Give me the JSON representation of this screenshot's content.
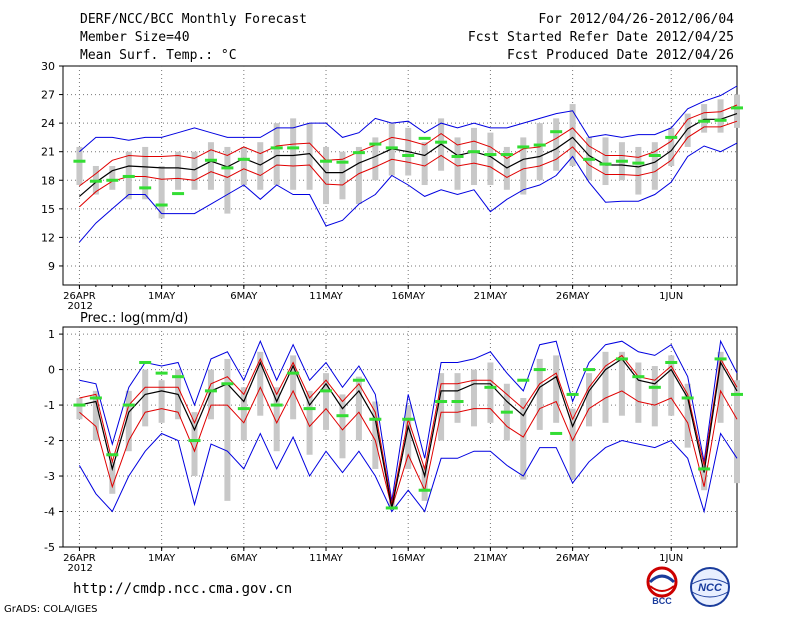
{
  "header": {
    "title": "DERF/NCC/BCC Monthly Forecast",
    "member_size": "Member Size=40",
    "variable": "Mean Surf. Temp.: °C",
    "period": "For 2012/04/26-2012/06/04",
    "started": "Fcst Started Refer Date 2012/04/25",
    "produced": "Fcst Produced Date 2012/04/26"
  },
  "footer": {
    "url": "http://cmdp.ncc.cma.gov.cn",
    "grads": "GrADS: COLA/IGES",
    "logo_left": "BCC",
    "logo_right": "NCC"
  },
  "colors": {
    "spread": "#c8c8c8",
    "mean": "#000000",
    "inner": "#e00000",
    "outer": "#0000e0",
    "obs": "#33dd33"
  },
  "chart_data": [
    {
      "type": "line",
      "title": "Mean Surf. Temp.: °C",
      "x_ticks": [
        {
          "day": 0,
          "label": "26APR",
          "sub": "2012"
        },
        {
          "day": 5,
          "label": "1MAY"
        },
        {
          "day": 10,
          "label": "6MAY"
        },
        {
          "day": 15,
          "label": "11MAY"
        },
        {
          "day": 20,
          "label": "16MAY"
        },
        {
          "day": 25,
          "label": "21MAY"
        },
        {
          "day": 30,
          "label": "26MAY"
        },
        {
          "day": 36,
          "label": "1JUN"
        }
      ],
      "y_ticks": [
        9,
        12,
        15,
        18,
        21,
        24,
        27,
        30
      ],
      "ylim": [
        7,
        30
      ],
      "xlim": [
        -1,
        40
      ],
      "series": {
        "mean": [
          16.3,
          17.8,
          19.0,
          19.5,
          19.4,
          19.3,
          19.3,
          19.1,
          20.0,
          19.4,
          20.3,
          19.6,
          20.6,
          20.6,
          20.8,
          18.8,
          18.8,
          19.8,
          20.5,
          21.3,
          21.0,
          20.6,
          21.8,
          20.6,
          21.0,
          20.5,
          19.3,
          20.2,
          20.5,
          21.3,
          22.5,
          20.6,
          19.6,
          19.6,
          19.4,
          19.9,
          21.1,
          23.4,
          24.4,
          24.4,
          25.0
        ],
        "upper_red": [
          17.4,
          18.7,
          20.1,
          20.6,
          20.5,
          20.5,
          20.6,
          20.3,
          21.2,
          20.6,
          21.5,
          20.8,
          21.6,
          21.8,
          21.9,
          20.1,
          20.2,
          21.0,
          21.7,
          22.5,
          22.2,
          21.7,
          22.9,
          21.7,
          22.1,
          21.5,
          20.3,
          21.3,
          21.5,
          22.4,
          23.5,
          21.6,
          20.6,
          20.6,
          20.4,
          21.0,
          22.1,
          24.4,
          25.1,
          25.2,
          25.9
        ],
        "lower_red": [
          15.2,
          16.8,
          17.9,
          18.4,
          18.4,
          18.1,
          18.2,
          18.0,
          18.9,
          18.3,
          19.2,
          18.5,
          19.6,
          19.5,
          19.6,
          17.6,
          17.5,
          18.7,
          19.4,
          20.2,
          19.9,
          19.5,
          20.6,
          19.5,
          19.8,
          19.4,
          18.3,
          19.2,
          19.5,
          20.2,
          21.5,
          19.6,
          18.6,
          18.6,
          18.5,
          18.9,
          20.1,
          22.5,
          23.6,
          23.6,
          24.2
        ],
        "upper_blue": [
          21.0,
          22.5,
          22.5,
          22.2,
          22.5,
          22.5,
          23.0,
          23.5,
          23.0,
          22.5,
          22.5,
          22.5,
          23.5,
          23.5,
          24.0,
          24.0,
          22.5,
          23.0,
          24.5,
          24.0,
          24.2,
          23.0,
          24.0,
          23.5,
          24.0,
          23.5,
          23.5,
          24.0,
          24.5,
          25.0,
          25.3,
          22.5,
          22.8,
          22.5,
          22.8,
          22.8,
          23.5,
          25.5,
          26.3,
          26.9,
          27.9
        ],
        "lower_blue": [
          11.5,
          13.5,
          15.0,
          16.5,
          16.5,
          14.5,
          14.5,
          14.5,
          15.5,
          16.5,
          17.5,
          16.0,
          17.5,
          16.5,
          16.5,
          13.2,
          13.8,
          15.5,
          16.5,
          18.5,
          17.5,
          16.3,
          17.0,
          16.5,
          17.0,
          14.7,
          16.0,
          17.0,
          17.5,
          18.5,
          20.5,
          17.8,
          15.7,
          15.8,
          15.8,
          16.5,
          17.8,
          20.5,
          21.6,
          21.0,
          21.9
        ],
        "box_top": [
          21.5,
          19.5,
          19.5,
          21.0,
          21.5,
          19.5,
          21.0,
          21.0,
          22.0,
          21.5,
          21.5,
          22.0,
          24.0,
          24.5,
          24.0,
          21.5,
          21.0,
          21.5,
          22.5,
          24.0,
          23.5,
          22.0,
          24.5,
          22.5,
          23.5,
          23.0,
          21.5,
          22.5,
          24.0,
          24.5,
          26.0,
          22.5,
          22.5,
          22.0,
          21.5,
          22.0,
          23.5,
          25.0,
          26.0,
          26.5,
          27.0
        ],
        "box_bottom": [
          17.5,
          16.5,
          17.0,
          16.0,
          16.0,
          14.0,
          17.0,
          17.0,
          17.0,
          14.5,
          17.5,
          17.0,
          17.5,
          17.0,
          17.0,
          15.5,
          16.0,
          15.5,
          18.0,
          18.5,
          18.5,
          17.5,
          19.0,
          17.0,
          17.5,
          17.5,
          17.0,
          16.5,
          18.0,
          19.0,
          19.5,
          18.0,
          17.5,
          18.0,
          16.5,
          17.0,
          19.5,
          21.5,
          23.0,
          23.0,
          23.5
        ],
        "obs": [
          20.0,
          17.9,
          18.0,
          18.4,
          17.2,
          15.4,
          16.6,
          null,
          20.1,
          19.3,
          20.2,
          null,
          21.4,
          21.4,
          null,
          20.0,
          19.9,
          20.9,
          21.8,
          21.4,
          20.6,
          22.4,
          22.0,
          20.5,
          21.0,
          20.7,
          20.7,
          21.5,
          21.7,
          23.1,
          null,
          20.2,
          19.7,
          20.0,
          19.8,
          20.6,
          22.5,
          null,
          24.2,
          24.3,
          25.6
        ]
      }
    },
    {
      "type": "line",
      "title": "Prec.: log(mm/d)",
      "x_ticks": [
        {
          "day": 0,
          "label": "26APR",
          "sub": "2012"
        },
        {
          "day": 5,
          "label": "1MAY"
        },
        {
          "day": 10,
          "label": "6MAY"
        },
        {
          "day": 15,
          "label": "11MAY"
        },
        {
          "day": 20,
          "label": "16MAY"
        },
        {
          "day": 25,
          "label": "21MAY"
        },
        {
          "day": 30,
          "label": "26MAY"
        },
        {
          "day": 36,
          "label": "1JUN"
        }
      ],
      "y_ticks": [
        -5,
        -4,
        -3,
        -2,
        -1,
        0,
        1
      ],
      "ylim": [
        -5,
        1.2
      ],
      "xlim": [
        -1,
        40
      ],
      "series": {
        "mean": [
          -1.0,
          -0.9,
          -2.8,
          -1.2,
          -0.7,
          -0.6,
          -0.7,
          -1.7,
          -0.6,
          -0.4,
          -0.9,
          0.2,
          -0.9,
          0.1,
          -1.0,
          -0.4,
          -1.1,
          -0.6,
          -1.4,
          -3.9,
          -1.6,
          -3.0,
          -0.6,
          -0.6,
          -0.4,
          -0.4,
          -0.9,
          -1.3,
          -0.5,
          -0.2,
          -1.6,
          -0.6,
          0.0,
          0.3,
          -0.3,
          -0.4,
          -0.0,
          -0.8,
          -2.9,
          0.2,
          -0.6
        ],
        "upper_red": [
          -0.8,
          -0.7,
          -2.6,
          -1.0,
          -0.5,
          -0.5,
          -0.5,
          -1.5,
          -0.4,
          -0.2,
          -0.7,
          0.3,
          -0.7,
          0.2,
          -0.8,
          -0.3,
          -0.9,
          -0.4,
          -1.2,
          -3.8,
          -1.4,
          -2.8,
          -0.4,
          -0.4,
          -0.3,
          -0.3,
          -0.7,
          -1.1,
          -0.4,
          -0.1,
          -1.4,
          -0.5,
          0.1,
          0.4,
          -0.2,
          -0.3,
          0.1,
          -0.7,
          -2.7,
          0.3,
          -0.5
        ],
        "lower_red": [
          -1.2,
          -1.6,
          -3.3,
          -2.0,
          -1.2,
          -1.1,
          -1.2,
          -2.3,
          -1.0,
          -1.0,
          -1.5,
          -0.5,
          -1.5,
          -0.6,
          -1.6,
          -1.1,
          -1.7,
          -1.2,
          -2.0,
          -3.9,
          -2.4,
          -3.4,
          -1.2,
          -1.2,
          -1.1,
          -1.1,
          -1.6,
          -1.9,
          -1.1,
          -0.9,
          -2.0,
          -1.1,
          -0.8,
          -0.6,
          -0.9,
          -1.0,
          -0.8,
          -1.5,
          -3.3,
          -0.6,
          -1.4
        ],
        "upper_blue": [
          -0.3,
          -0.4,
          -2.1,
          -0.5,
          0.2,
          0.1,
          0.2,
          -1.0,
          0.3,
          0.5,
          -0.3,
          0.8,
          -0.3,
          0.7,
          -0.3,
          0.2,
          -0.5,
          0.1,
          -0.7,
          -3.7,
          -0.7,
          -2.5,
          0.2,
          0.2,
          0.3,
          0.5,
          -0.1,
          -0.6,
          0.7,
          0.8,
          -0.9,
          0.2,
          0.7,
          0.8,
          0.5,
          0.4,
          0.7,
          -0.2,
          -2.6,
          0.8,
          -0.1
        ],
        "lower_blue": [
          -2.7,
          -3.5,
          -4.0,
          -3.0,
          -2.3,
          -1.8,
          -2.0,
          -3.8,
          -2.1,
          -2.3,
          -2.8,
          -1.8,
          -2.8,
          -1.9,
          -3.0,
          -2.3,
          -2.9,
          -2.3,
          -3.0,
          -4.0,
          -3.4,
          -4.0,
          -2.5,
          -2.5,
          -2.3,
          -2.3,
          -2.7,
          -3.0,
          -2.2,
          -2.2,
          -3.2,
          -2.6,
          -2.2,
          -2.0,
          -2.1,
          -2.2,
          -2.0,
          -2.5,
          -4.0,
          -1.8,
          -2.5
        ],
        "box_top": [
          -0.8,
          -0.6,
          -2.6,
          -0.6,
          0.0,
          -0.3,
          0.0,
          -1.2,
          0.0,
          0.3,
          -0.5,
          0.5,
          -0.5,
          0.4,
          -0.6,
          -0.1,
          -0.7,
          -0.2,
          -0.9,
          -3.7,
          -1.0,
          -2.7,
          -0.1,
          -0.1,
          0.0,
          0.2,
          -0.4,
          -0.8,
          0.3,
          0.4,
          -1.1,
          -0.1,
          0.5,
          0.5,
          0.2,
          0.1,
          0.4,
          -0.4,
          -2.7,
          0.5,
          -0.3
        ],
        "box_bottom": [
          -1.4,
          -2.0,
          -3.5,
          -2.3,
          -1.6,
          -1.5,
          -1.4,
          -3.0,
          -1.4,
          -3.7,
          -2.0,
          -1.3,
          -2.3,
          -1.4,
          -2.4,
          -1.7,
          -2.5,
          -2.0,
          -2.8,
          -3.9,
          -2.8,
          -3.7,
          -2.0,
          -1.5,
          -1.6,
          -1.5,
          -2.0,
          -3.1,
          -1.7,
          -1.5,
          -3.1,
          -1.6,
          -1.5,
          -1.3,
          -1.5,
          -1.6,
          -1.3,
          -2.2,
          -3.4,
          -1.5,
          -3.2
        ],
        "obs": [
          -1.0,
          -0.8,
          -2.4,
          -1.0,
          0.2,
          -0.1,
          -0.2,
          -2.0,
          -0.6,
          -0.4,
          -1.1,
          null,
          -1.0,
          -0.1,
          -1.1,
          -0.6,
          -1.3,
          -0.3,
          -1.4,
          -3.9,
          -1.4,
          -3.4,
          -0.9,
          -0.9,
          null,
          -0.5,
          -1.2,
          -0.3,
          0.0,
          -1.8,
          -0.7,
          0.0,
          null,
          0.3,
          -0.2,
          -0.5,
          0.2,
          -0.8,
          -2.8,
          0.3,
          -0.7
        ]
      }
    }
  ]
}
